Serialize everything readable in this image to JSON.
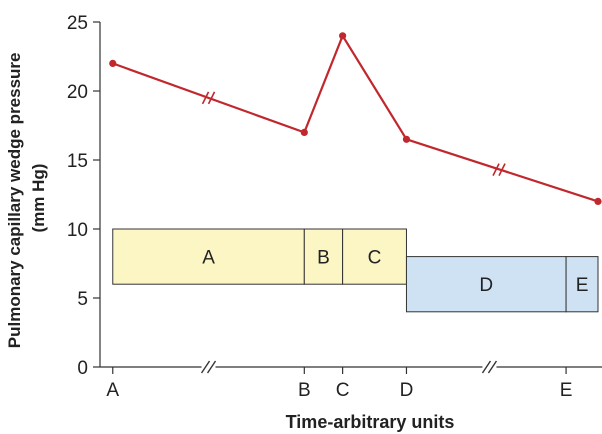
{
  "chart_data": {
    "type": "line",
    "xlabel": "Time-arbitrary units",
    "ylabel_lines": [
      "Pulmonary capillary wedge pressure",
      "(mm Hg)"
    ],
    "ylim": [
      0,
      25
    ],
    "y_ticks": [
      0,
      5,
      10,
      15,
      20,
      25
    ],
    "x_ticks": [
      "A",
      "B",
      "C",
      "D",
      "E"
    ],
    "x_tick_positions": [
      0,
      3,
      3.6,
      4.6,
      7.1
    ],
    "xlim": [
      -0.2,
      7.6
    ],
    "axis_breaks_x": [
      1.5,
      5.9
    ],
    "series": [
      {
        "points": [
          [
            0,
            22
          ],
          [
            3,
            17
          ],
          [
            3.6,
            24
          ],
          [
            4.6,
            16.5
          ],
          [
            7.6,
            12
          ]
        ],
        "line_breaks": [
          [
            1.5,
            19.5
          ],
          [
            6.05,
            14.3
          ]
        ]
      }
    ],
    "boxes": [
      {
        "label": "A",
        "x": [
          0,
          3
        ],
        "y": [
          6,
          10
        ],
        "color": "#fbf6c4"
      },
      {
        "label": "B",
        "x": [
          3,
          3.6
        ],
        "y": [
          6,
          10
        ],
        "color": "#fbf6c4"
      },
      {
        "label": "C",
        "x": [
          3.6,
          4.6
        ],
        "y": [
          6,
          10
        ],
        "color": "#fbf6c4"
      },
      {
        "label": "D",
        "x": [
          4.6,
          7.1
        ],
        "y": [
          4,
          8
        ],
        "color": "#cfe2f4"
      },
      {
        "label": "E",
        "x": [
          7.1,
          7.6
        ],
        "y": [
          4,
          8
        ],
        "color": "#cfe2f4"
      }
    ],
    "colors": {
      "line": "#c0282d",
      "axis": "#333333",
      "box_stroke": "#333333"
    },
    "grid": false
  }
}
